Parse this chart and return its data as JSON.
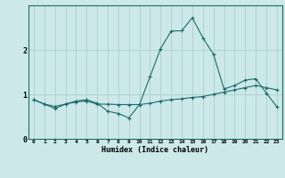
{
  "xlabel": "Humidex (Indice chaleur)",
  "ylabel": "",
  "bg_color": "#cce8e8",
  "line_color": "#1a6b6b",
  "grid_color": "#aacfcf",
  "x_values": [
    0,
    1,
    2,
    3,
    4,
    5,
    6,
    7,
    8,
    9,
    10,
    11,
    12,
    13,
    14,
    15,
    16,
    17,
    18,
    19,
    20,
    21,
    22,
    23
  ],
  "line1_y": [
    0.88,
    0.78,
    0.73,
    0.78,
    0.83,
    0.85,
    0.78,
    0.78,
    0.77,
    0.77,
    0.77,
    0.8,
    0.85,
    0.88,
    0.9,
    0.93,
    0.95,
    1.0,
    1.05,
    1.1,
    1.15,
    1.2,
    1.15,
    1.1
  ],
  "line2_y": [
    0.88,
    0.78,
    0.68,
    0.78,
    0.85,
    0.88,
    0.8,
    0.62,
    0.57,
    0.47,
    0.77,
    1.4,
    2.03,
    2.42,
    2.43,
    2.72,
    2.27,
    1.9,
    1.12,
    1.2,
    1.32,
    1.35,
    1.03,
    0.72
  ],
  "ylim": [
    0,
    3.0
  ],
  "yticks": [
    0,
    1,
    2
  ],
  "xlim": [
    -0.5,
    23.5
  ]
}
